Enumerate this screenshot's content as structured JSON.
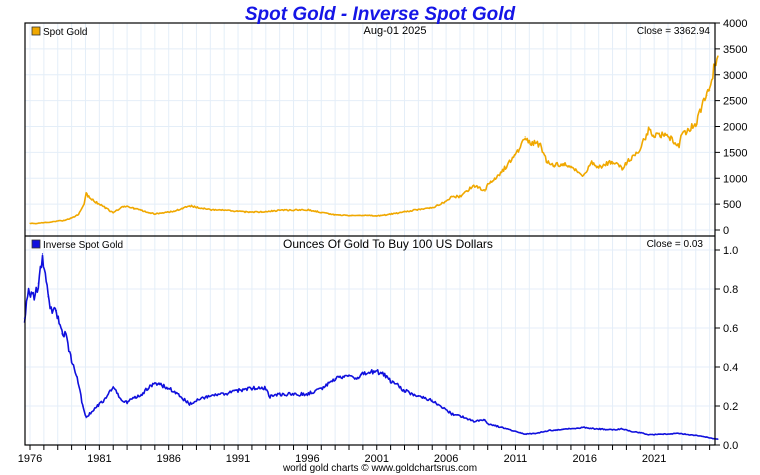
{
  "chart_data": [
    {
      "type": "line",
      "title": "Spot Gold - Inverse Spot Gold",
      "date_label": "Aug-01  2025",
      "legend": "Spot Gold",
      "legend_placement": "top-left",
      "close_label": "Close = 3362.94",
      "series_color": "#f0a800",
      "ylim": [
        0,
        4000
      ],
      "yticks": [
        "0",
        "500",
        "1000",
        "1500",
        "2000",
        "2500",
        "3000",
        "3500",
        "4000"
      ],
      "grid": true,
      "x": [
        1976.0,
        1976.5,
        1977.0,
        1977.5,
        1978.0,
        1978.5,
        1979.0,
        1979.5,
        1979.9,
        1980.05,
        1980.3,
        1980.6,
        1981.0,
        1981.5,
        1982.0,
        1982.4,
        1982.6,
        1983.0,
        1983.5,
        1984.0,
        1984.5,
        1985.0,
        1985.5,
        1986.0,
        1986.5,
        1987.0,
        1987.5,
        1988.0,
        1988.5,
        1989.0,
        1990.0,
        1991.0,
        1992.0,
        1993.0,
        1994.0,
        1995.0,
        1996.0,
        1997.0,
        1998.0,
        1999.0,
        1999.8,
        2000.0,
        2001.0,
        2002.0,
        2003.0,
        2004.0,
        2005.0,
        2006.0,
        2006.4,
        2007.0,
        2008.0,
        2008.8,
        2009.0,
        2010.0,
        2011.0,
        2011.7,
        2012.0,
        2012.8,
        2013.3,
        2013.8,
        2014.5,
        2015.0,
        2015.9,
        2016.5,
        2017.0,
        2018.0,
        2018.7,
        2019.0,
        2019.7,
        2020.0,
        2020.6,
        2021.0,
        2021.5,
        2022.0,
        2022.8,
        2023.0,
        2023.5,
        2024.0,
        2024.3,
        2024.8,
        2025.0,
        2025.3,
        2025.6
      ],
      "values": [
        130,
        125,
        145,
        150,
        175,
        185,
        230,
        300,
        510,
        700,
        620,
        560,
        500,
        420,
        330,
        400,
        440,
        460,
        420,
        380,
        345,
        310,
        330,
        345,
        370,
        420,
        470,
        440,
        420,
        390,
        380,
        360,
        345,
        350,
        385,
        385,
        390,
        340,
        295,
        280,
        285,
        285,
        270,
        305,
        350,
        400,
        430,
        560,
        640,
        650,
        860,
        750,
        880,
        1120,
        1450,
        1800,
        1700,
        1650,
        1300,
        1250,
        1280,
        1200,
        1060,
        1300,
        1220,
        1320,
        1200,
        1300,
        1480,
        1560,
        1950,
        1800,
        1830,
        1800,
        1650,
        1850,
        1950,
        2050,
        2300,
        2600,
        2700,
        3100,
        3363
      ]
    },
    {
      "type": "line",
      "subtitle": "Ounces Of Gold To Buy 100 US Dollars",
      "legend": "Inverse Spot Gold",
      "legend_placement": "top-left",
      "close_label": "Close = 0.03",
      "series_color": "#1010dd",
      "ylim": [
        0.0,
        1.0
      ],
      "yticks": [
        "0.0",
        "0.2",
        "0.4",
        "0.6",
        "0.8",
        "1.0"
      ],
      "xticks": [
        "1976",
        "1981",
        "1986",
        "1991",
        "1996",
        "2001",
        "2006",
        "2011",
        "2016",
        "2021"
      ],
      "grid": true,
      "x": [
        1975.6,
        1975.9,
        1976.3,
        1976.6,
        1976.9,
        1977.3,
        1977.6,
        1977.9,
        1978.3,
        1978.6,
        1979.0,
        1979.4,
        1979.8,
        1980.05,
        1980.3,
        1980.6,
        1981.0,
        1981.5,
        1982.0,
        1982.4,
        1982.6,
        1983.0,
        1983.5,
        1984.0,
        1984.5,
        1985.0,
        1985.3,
        1986.0,
        1986.5,
        1987.0,
        1987.5,
        1988.0,
        1989.0,
        1990.0,
        1991.0,
        1992.0,
        1993.0,
        1993.3,
        1994.0,
        1995.0,
        1996.0,
        1997.0,
        1998.0,
        1999.0,
        1999.7,
        1999.9,
        2000.5,
        2001.0,
        2001.5,
        2002.0,
        2003.0,
        2004.0,
        2005.0,
        2006.0,
        2006.4,
        2007.0,
        2008.0,
        2008.8,
        2009.0,
        2010.0,
        2011.0,
        2011.7,
        2012.5,
        2013.5,
        2014.5,
        2015.9,
        2017.0,
        2018.0,
        2018.7,
        2019.5,
        2020.0,
        2020.6,
        2021.5,
        2022.8,
        2023.5,
        2024.0,
        2024.8,
        2025.3,
        2025.6
      ],
      "values": [
        0.65,
        0.8,
        0.75,
        0.83,
        0.98,
        0.76,
        0.68,
        0.69,
        0.57,
        0.56,
        0.43,
        0.35,
        0.2,
        0.14,
        0.16,
        0.18,
        0.21,
        0.24,
        0.3,
        0.25,
        0.23,
        0.22,
        0.24,
        0.26,
        0.29,
        0.32,
        0.31,
        0.29,
        0.27,
        0.24,
        0.21,
        0.23,
        0.25,
        0.26,
        0.28,
        0.29,
        0.29,
        0.25,
        0.26,
        0.26,
        0.26,
        0.29,
        0.34,
        0.36,
        0.34,
        0.36,
        0.37,
        0.38,
        0.36,
        0.33,
        0.28,
        0.25,
        0.23,
        0.18,
        0.16,
        0.15,
        0.12,
        0.13,
        0.11,
        0.09,
        0.07,
        0.056,
        0.06,
        0.075,
        0.08,
        0.09,
        0.082,
        0.078,
        0.083,
        0.067,
        0.064,
        0.052,
        0.055,
        0.06,
        0.053,
        0.049,
        0.04,
        0.032,
        0.03
      ]
    }
  ],
  "footer": "world gold charts © www.goldchartsrus.com"
}
